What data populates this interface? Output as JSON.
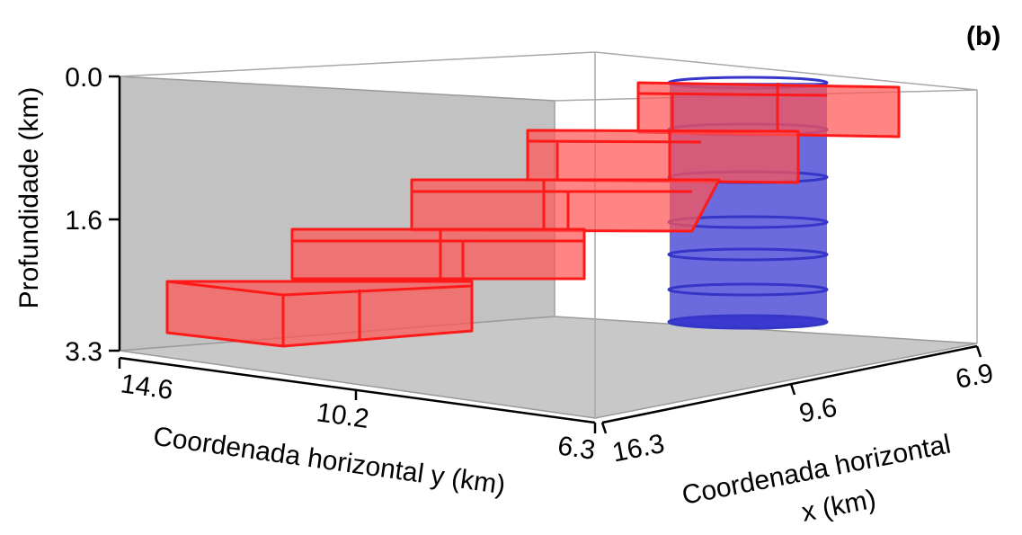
{
  "panel_label": "(b)",
  "chart_data": {
    "type": "3d-box",
    "title": "",
    "zlabel": "Profundidade (km)",
    "ylabel": "Coordenada horizontal y (km)",
    "xlabel_line1": "Coordenada horizontal",
    "xlabel_line2": "x (km)",
    "z_ticks": [
      "0.0",
      "1.6",
      "3.3"
    ],
    "y_ticks": [
      "14.6",
      "10.2",
      "6.3"
    ],
    "x_ticks": [
      "16.3",
      "9.6",
      "6.9"
    ],
    "zlim": [
      0.0,
      3.3
    ],
    "ylim": [
      14.6,
      6.3
    ],
    "xlim": [
      16.3,
      6.9
    ],
    "bodies": [
      {
        "name": "",
        "shape": "stair-step prisms",
        "color": "#ff1a1a",
        "steps": 5
      },
      {
        "name": "",
        "shape": "vertical cylinder",
        "color": "#3a3aff"
      }
    ],
    "colors": {
      "prism": "#ff1a1a",
      "cylinder": "#3a3aff",
      "wall": "#bfbfbf",
      "floor": "#c4c4c4"
    }
  }
}
